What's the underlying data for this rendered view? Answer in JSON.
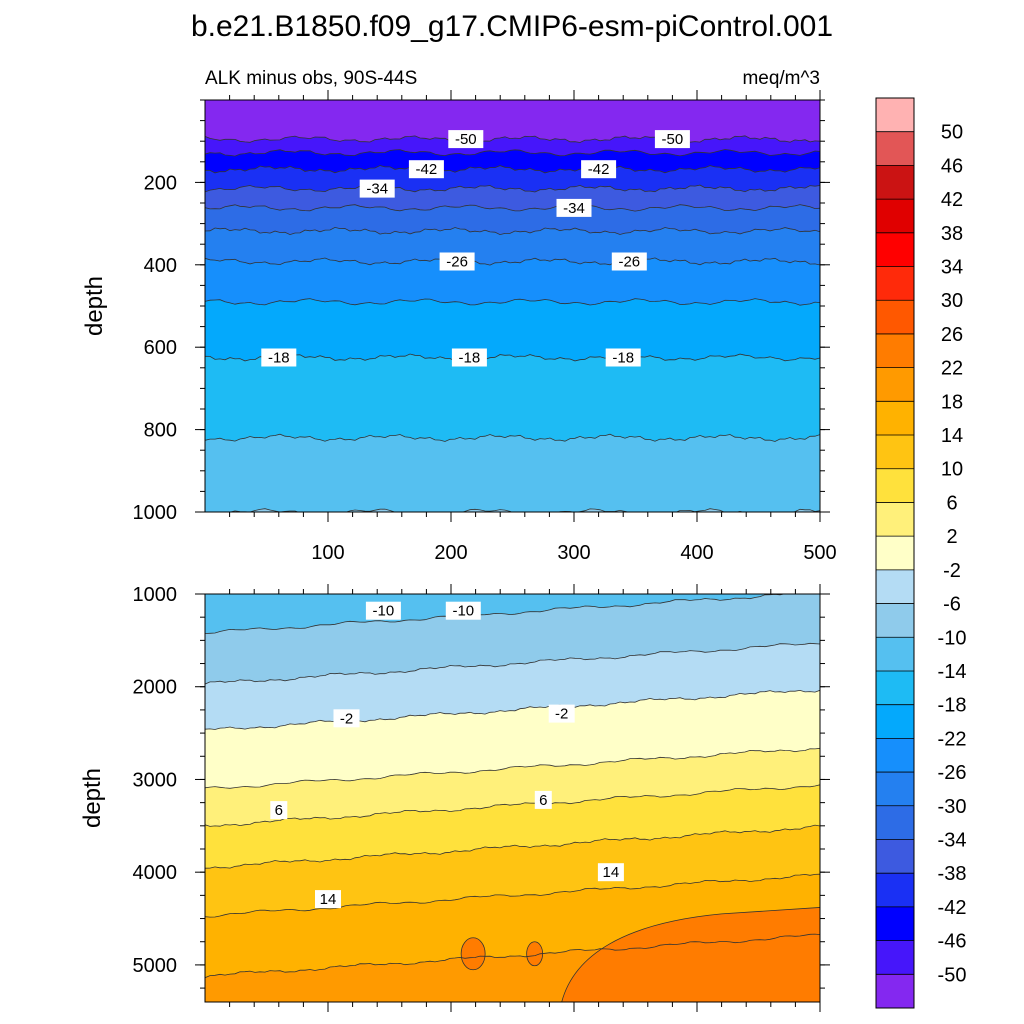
{
  "chart_data": {
    "type": "heatmap",
    "title": "b.e21.B1850.f09_g17.CMIP6-esm-piControl.001",
    "subtitle_left": "ALK minus obs, 90S-44S",
    "subtitle_right": "meq/m^3",
    "colorbar": {
      "labels": [
        "50",
        "46",
        "42",
        "38",
        "34",
        "30",
        "26",
        "22",
        "18",
        "14",
        "10",
        "6",
        "2",
        "-2",
        "-6",
        "-10",
        "-14",
        "-18",
        "-22",
        "-26",
        "-30",
        "-34",
        "-38",
        "-42",
        "-46",
        "-50"
      ],
      "colors": [
        "#ffb2b2",
        "#e25656",
        "#cb1313",
        "#e00000",
        "#ff0000",
        "#ff2a0a",
        "#ff5800",
        "#ff7c00",
        "#ff9a00",
        "#ffb200",
        "#ffc412",
        "#ffe13c",
        "#fff07a",
        "#ffffc8",
        "#b4dcf4",
        "#8fcbeb",
        "#55c0f0",
        "#1ebbf4",
        "#04a9fc",
        "#168ffc",
        "#2480f0",
        "#2d6ce6",
        "#3d5ae0",
        "#1a30f4",
        "#0000ff",
        "#4616fa",
        "#8428f0"
      ]
    },
    "panels": [
      {
        "name": "upper",
        "ylabel": "depth",
        "ylim": [
          0,
          1000
        ],
        "xlim": [
          0,
          500
        ],
        "y_ticks": [
          200,
          400,
          600,
          800,
          1000
        ],
        "x_ticks": [
          100,
          200,
          300,
          400,
          500
        ],
        "contour_levels": [
          {
            "depth": 95,
            "value": -50
          },
          {
            "depth": 128,
            "value": -46
          },
          {
            "depth": 168,
            "value": -42
          },
          {
            "depth": 215,
            "value": -38
          },
          {
            "depth": 262,
            "value": -34
          },
          {
            "depth": 318,
            "value": -30
          },
          {
            "depth": 392,
            "value": -26
          },
          {
            "depth": 490,
            "value": -22
          },
          {
            "depth": 625,
            "value": -18
          },
          {
            "depth": 820,
            "value": -14
          },
          {
            "depth": 1000,
            "value": -10
          }
        ],
        "contour_labels": [
          {
            "x": 212,
            "depth": 95,
            "text": "-50"
          },
          {
            "x": 380,
            "depth": 95,
            "text": "-50"
          },
          {
            "x": 180,
            "depth": 168,
            "text": "-42"
          },
          {
            "x": 320,
            "depth": 168,
            "text": "-42"
          },
          {
            "x": 140,
            "depth": 215,
            "text": "-34"
          },
          {
            "x": 300,
            "depth": 262,
            "text": "-34"
          },
          {
            "x": 205,
            "depth": 392,
            "text": "-26"
          },
          {
            "x": 345,
            "depth": 392,
            "text": "-26"
          },
          {
            "x": 60,
            "depth": 625,
            "text": "-18"
          },
          {
            "x": 215,
            "depth": 625,
            "text": "-18"
          },
          {
            "x": 340,
            "depth": 625,
            "text": "-18"
          }
        ]
      },
      {
        "name": "lower",
        "ylabel": "depth",
        "ylim": [
          1000,
          5400
        ],
        "xlim": [
          0,
          500
        ],
        "y_ticks": [
          1000,
          2000,
          3000,
          4000,
          5000
        ],
        "contour_levels": [
          {
            "depth": 1200,
            "value": -10
          },
          {
            "depth": 1750,
            "value": -6
          },
          {
            "depth": 2250,
            "value": -2
          },
          {
            "depth": 2880,
            "value": 2
          },
          {
            "depth": 3280,
            "value": 6
          },
          {
            "depth": 3730,
            "value": 10
          },
          {
            "depth": 4250,
            "value": 14
          },
          {
            "depth": 4900,
            "value": 18
          }
        ],
        "contour_labels": [
          {
            "x": 145,
            "depth": 1180,
            "text": "-10"
          },
          {
            "x": 210,
            "depth": 1180,
            "text": "-10"
          },
          {
            "x": 115,
            "depth": 2340,
            "text": "-2"
          },
          {
            "x": 290,
            "depth": 2290,
            "text": "-2"
          },
          {
            "x": 60,
            "depth": 3330,
            "text": "6"
          },
          {
            "x": 275,
            "depth": 3220,
            "text": "6"
          },
          {
            "x": 100,
            "depth": 4290,
            "text": "14"
          },
          {
            "x": 330,
            "depth": 4000,
            "text": "14"
          }
        ]
      }
    ]
  }
}
